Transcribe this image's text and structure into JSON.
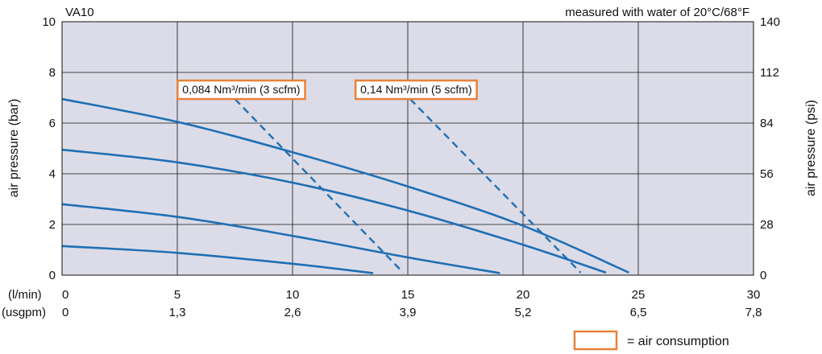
{
  "chart_data": {
    "type": "line",
    "title": "VA10",
    "note": "measured with water of 20°C/68°F",
    "ylabel_left": "air pressure (bar)",
    "ylabel_right": "air pressure (psi)",
    "x_unit_primary": "(l/min)",
    "x_unit_secondary": "(usgpm)",
    "xlim": [
      0,
      30
    ],
    "ylim": [
      0,
      10
    ],
    "x_ticks": [
      0,
      5,
      10,
      15,
      20,
      25,
      30
    ],
    "x_ticks_secondary": [
      "0",
      "1,3",
      "2,6",
      "3,9",
      "5,2",
      "6,5",
      "7,8"
    ],
    "y_ticks_left": [
      0,
      2,
      4,
      6,
      8,
      10
    ],
    "y_ticks_right": [
      0,
      28,
      56,
      84,
      112,
      140
    ],
    "grid": true,
    "plot_background": "#dcdce8",
    "line_color": "#1f6fb4",
    "box_color": "#e8823a",
    "series": [
      {
        "x": [
          0,
          5,
          10,
          13.5
        ],
        "y": [
          1.15,
          0.88,
          0.45,
          0.08
        ]
      },
      {
        "x": [
          0,
          5,
          10,
          15,
          19
        ],
        "y": [
          2.8,
          2.3,
          1.55,
          0.7,
          0.08
        ]
      },
      {
        "x": [
          0,
          5,
          10,
          15,
          20,
          23.6
        ],
        "y": [
          4.95,
          4.45,
          3.65,
          2.55,
          1.2,
          0.1
        ]
      },
      {
        "x": [
          0,
          5,
          10,
          15,
          20,
          24.6
        ],
        "y": [
          6.95,
          6.05,
          4.85,
          3.5,
          1.95,
          0.1
        ]
      }
    ],
    "air_consumption": [
      {
        "label": "0,084 Nm³/min (3 scfm)",
        "x": [
          7.5,
          14.8
        ],
        "y": [
          6.95,
          0.1
        ]
      },
      {
        "label": "0,14 Nm³/min (5 scfm)",
        "x": [
          15.1,
          22.5
        ],
        "y": [
          6.95,
          0.1
        ]
      }
    ],
    "legend": {
      "text": "= air consumption"
    }
  }
}
